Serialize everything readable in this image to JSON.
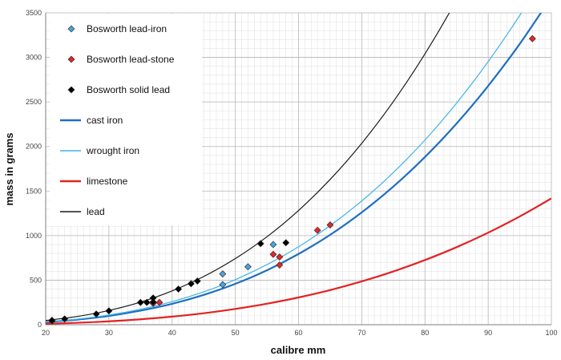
{
  "chart_data": {
    "type": "scatter",
    "title": "",
    "xlabel": "calibre mm",
    "ylabel": "mass in grams",
    "xlim": [
      20,
      100
    ],
    "ylim": [
      0,
      3500
    ],
    "grid": true,
    "legend_position": "top-left",
    "x_ticks": [
      "20",
      "30",
      "40",
      "50",
      "60",
      "70",
      "80",
      "90",
      "100"
    ],
    "y_ticks": [
      "0",
      "500",
      "1000",
      "1500",
      "2000",
      "2500",
      "3000",
      "3500"
    ],
    "scatter_series": [
      {
        "name": "Bosworth lead-iron",
        "color": "#4aa3df",
        "points": [
          [
            48,
            450
          ],
          [
            48,
            570
          ],
          [
            52,
            650
          ],
          [
            56,
            900
          ]
        ]
      },
      {
        "name": "Bosworth lead-stone",
        "color": "#e0282a",
        "points": [
          [
            37,
            240
          ],
          [
            38,
            250
          ],
          [
            56,
            790
          ],
          [
            57,
            670
          ],
          [
            57,
            760
          ],
          [
            63,
            1060
          ],
          [
            65,
            1120
          ],
          [
            97,
            3210
          ]
        ]
      },
      {
        "name": "Bosworth solid lead",
        "color": "#000000",
        "points": [
          [
            21,
            50
          ],
          [
            21,
            45
          ],
          [
            23,
            65
          ],
          [
            28,
            120
          ],
          [
            30,
            155
          ],
          [
            35,
            250
          ],
          [
            36,
            250
          ],
          [
            37,
            255
          ],
          [
            37,
            300
          ],
          [
            41,
            400
          ],
          [
            43,
            460
          ],
          [
            44,
            490
          ],
          [
            54,
            910
          ],
          [
            58,
            920
          ]
        ]
      }
    ],
    "line_series": [
      {
        "name": "cast iron",
        "color": "#1f6fc1",
        "x": [
          20,
          25,
          30,
          35,
          40,
          45,
          50,
          55,
          60,
          65,
          70,
          75,
          80,
          85,
          90,
          95,
          100
        ],
        "y": [
          29,
          57,
          99,
          158,
          235,
          335,
          459,
          611,
          794,
          1009,
          1261,
          1550,
          1882,
          2257,
          2680,
          3152,
          3676
        ]
      },
      {
        "name": "wrought iron",
        "color": "#3fb4e8",
        "x": [
          20,
          25,
          30,
          35,
          40,
          45,
          50,
          55,
          60,
          65,
          70,
          75,
          80,
          85,
          90,
          95,
          100
        ],
        "y": [
          32,
          63,
          109,
          174,
          259,
          369,
          506,
          674,
          875,
          1112,
          1389,
          1708,
          2073,
          2487,
          2952,
          3472,
          4050
        ]
      },
      {
        "name": "limestone",
        "color": "#e32222",
        "x": [
          20,
          25,
          30,
          35,
          40,
          45,
          50,
          55,
          60,
          65,
          70,
          75,
          80,
          85,
          90,
          95,
          100
        ],
        "y": [
          11,
          22,
          38,
          61,
          91,
          129,
          177,
          236,
          306,
          389,
          486,
          598,
          726,
          870,
          1033,
          1215,
          1417
        ]
      },
      {
        "name": "lead",
        "color": "#1a1a1a",
        "x": [
          20,
          25,
          30,
          35,
          40,
          45,
          50,
          55,
          60,
          65,
          70,
          75,
          80,
          85,
          90,
          95,
          100
        ],
        "y": [
          47,
          93,
          160,
          254,
          380,
          541,
          742,
          987,
          1282,
          1630,
          2036,
          2504,
          3039,
          3645,
          4326,
          5088,
          5935
        ]
      }
    ]
  }
}
